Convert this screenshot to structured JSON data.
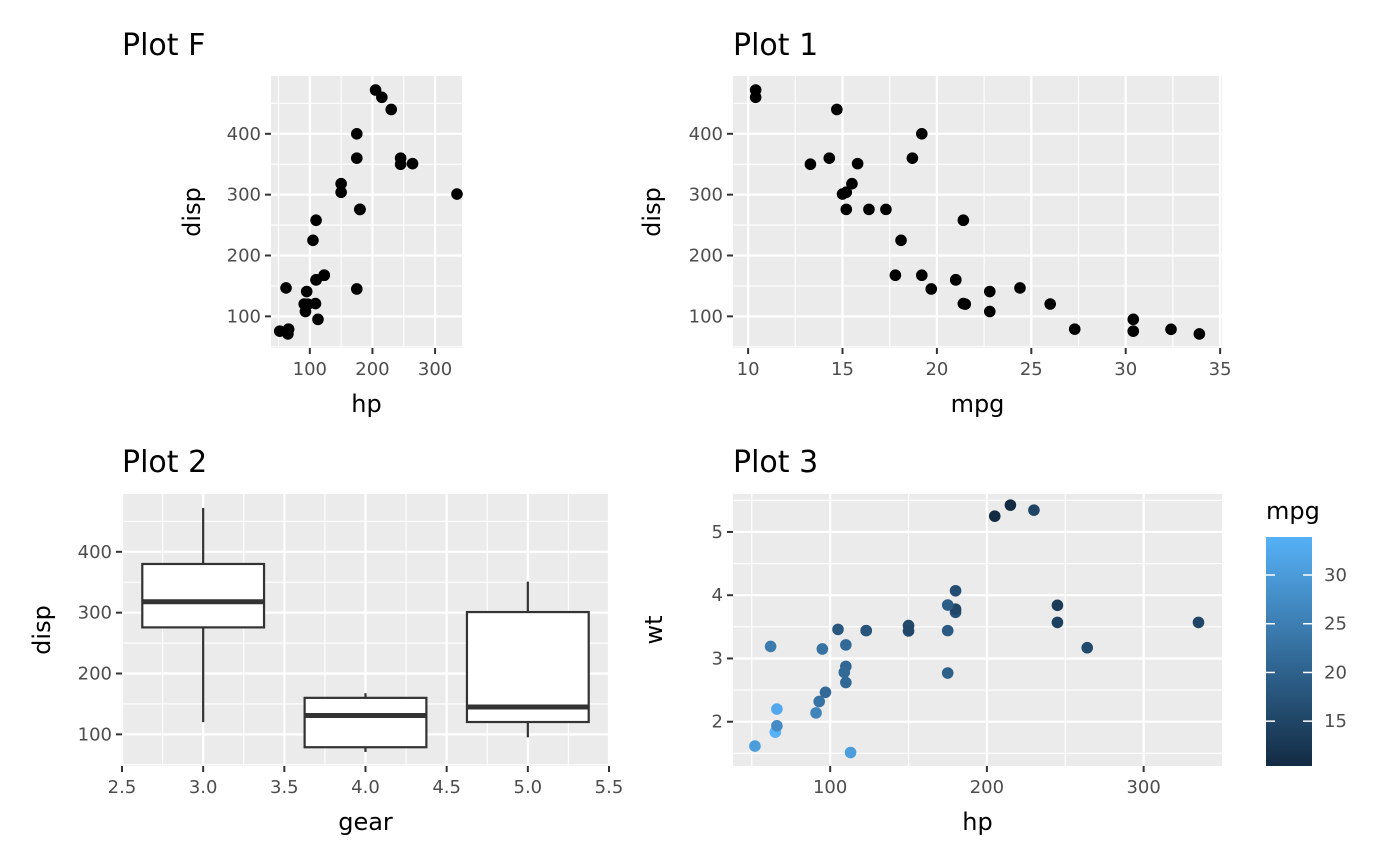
{
  "chart_data": [
    {
      "id": "plotF",
      "type": "scatter",
      "title": "Plot F",
      "xlabel": "hp",
      "ylabel": "disp",
      "xlim": [
        38,
        343
      ],
      "ylim": [
        48,
        495
      ],
      "xticks": [
        100,
        200,
        300
      ],
      "yticks": [
        100,
        200,
        300,
        400
      ],
      "point_color": "#000000",
      "points": [
        [
          110,
          160
        ],
        [
          110,
          160
        ],
        [
          93,
          108
        ],
        [
          110,
          258
        ],
        [
          175,
          360
        ],
        [
          105,
          225
        ],
        [
          245,
          360
        ],
        [
          62,
          146.7
        ],
        [
          95,
          140.8
        ],
        [
          123,
          167.6
        ],
        [
          123,
          167.6
        ],
        [
          180,
          275.8
        ],
        [
          180,
          275.8
        ],
        [
          180,
          275.8
        ],
        [
          205,
          472
        ],
        [
          215,
          460
        ],
        [
          230,
          440
        ],
        [
          66,
          78.7
        ],
        [
          52,
          75.7
        ],
        [
          65,
          71.1
        ],
        [
          97,
          120.1
        ],
        [
          150,
          318
        ],
        [
          150,
          304
        ],
        [
          245,
          350
        ],
        [
          175,
          400
        ],
        [
          66,
          79
        ],
        [
          91,
          120.3
        ],
        [
          113,
          95.1
        ],
        [
          264,
          351
        ],
        [
          175,
          145
        ],
        [
          335,
          301
        ],
        [
          109,
          121
        ]
      ]
    },
    {
      "id": "plot1",
      "type": "scatter",
      "title": "Plot 1",
      "xlabel": "mpg",
      "ylabel": "disp",
      "xlim": [
        9.2,
        35.1
      ],
      "ylim": [
        48,
        495
      ],
      "xticks": [
        10,
        15,
        20,
        25,
        30,
        35
      ],
      "yticks": [
        100,
        200,
        300,
        400
      ],
      "point_color": "#000000",
      "points": [
        [
          21,
          160
        ],
        [
          21,
          160
        ],
        [
          22.8,
          108
        ],
        [
          21.4,
          258
        ],
        [
          18.7,
          360
        ],
        [
          18.1,
          225
        ],
        [
          14.3,
          360
        ],
        [
          24.4,
          146.7
        ],
        [
          22.8,
          140.8
        ],
        [
          19.2,
          167.6
        ],
        [
          17.8,
          167.6
        ],
        [
          16.4,
          275.8
        ],
        [
          17.3,
          275.8
        ],
        [
          15.2,
          275.8
        ],
        [
          10.4,
          472
        ],
        [
          10.4,
          460
        ],
        [
          14.7,
          440
        ],
        [
          32.4,
          78.7
        ],
        [
          30.4,
          75.7
        ],
        [
          33.9,
          71.1
        ],
        [
          21.5,
          120.1
        ],
        [
          15.5,
          318
        ],
        [
          15.2,
          304
        ],
        [
          13.3,
          350
        ],
        [
          19.2,
          400
        ],
        [
          27.3,
          79
        ],
        [
          26,
          120.3
        ],
        [
          30.4,
          95.1
        ],
        [
          15.8,
          351
        ],
        [
          19.7,
          145
        ],
        [
          15,
          301
        ],
        [
          21.4,
          121
        ]
      ]
    },
    {
      "id": "plot2",
      "type": "box",
      "title": "Plot 2",
      "xlabel": "gear",
      "ylabel": "disp",
      "xlim": [
        2.5,
        5.5
      ],
      "ylim": [
        48,
        495
      ],
      "xticks": [
        "2.5",
        "3.0",
        "3.5",
        "4.0",
        "4.5",
        "5.0",
        "5.5"
      ],
      "yticks": [
        100,
        200,
        300,
        400
      ],
      "boxes": [
        {
          "gear": 3,
          "min": 120.1,
          "q1": 275.8,
          "median": 318,
          "q3": 380,
          "max": 472
        },
        {
          "gear": 4,
          "min": 71.1,
          "q1": 78.85,
          "median": 130.9,
          "q3": 160,
          "max": 167.6
        },
        {
          "gear": 5,
          "min": 95.1,
          "q1": 120.3,
          "median": 145,
          "q3": 301,
          "max": 351
        }
      ]
    },
    {
      "id": "plot3",
      "type": "scatter",
      "title": "Plot 3",
      "xlabel": "hp",
      "ylabel": "wt",
      "xlim": [
        38,
        350
      ],
      "ylim": [
        1.3,
        5.6
      ],
      "xticks": [
        100,
        200,
        300
      ],
      "yticks": [
        2,
        3,
        4,
        5
      ],
      "color_var": "mpg",
      "color_range": [
        10.4,
        33.9
      ],
      "color_low": "#132B43",
      "color_high": "#56B1F7",
      "legend_title": "mpg",
      "legend_ticks": [
        15,
        20,
        25,
        30
      ],
      "points": [
        [
          110,
          2.62,
          21
        ],
        [
          110,
          2.875,
          21
        ],
        [
          93,
          2.32,
          22.8
        ],
        [
          110,
          3.215,
          21.4
        ],
        [
          175,
          3.44,
          18.7
        ],
        [
          105,
          3.46,
          18.1
        ],
        [
          245,
          3.57,
          14.3
        ],
        [
          62,
          3.19,
          24.4
        ],
        [
          95,
          3.15,
          22.8
        ],
        [
          123,
          3.44,
          19.2
        ],
        [
          123,
          3.44,
          17.8
        ],
        [
          180,
          4.07,
          16.4
        ],
        [
          180,
          3.73,
          17.3
        ],
        [
          180,
          3.78,
          15.2
        ],
        [
          205,
          5.25,
          10.4
        ],
        [
          215,
          5.424,
          10.4
        ],
        [
          230,
          5.345,
          14.7
        ],
        [
          66,
          2.2,
          32.4
        ],
        [
          52,
          1.615,
          30.4
        ],
        [
          65,
          1.835,
          33.9
        ],
        [
          97,
          2.465,
          21.5
        ],
        [
          150,
          3.52,
          15.5
        ],
        [
          150,
          3.435,
          15.2
        ],
        [
          245,
          3.84,
          13.3
        ],
        [
          175,
          3.845,
          19.2
        ],
        [
          66,
          1.935,
          27.3
        ],
        [
          91,
          2.14,
          26
        ],
        [
          113,
          1.513,
          30.4
        ],
        [
          264,
          3.17,
          15.8
        ],
        [
          175,
          2.77,
          19.7
        ],
        [
          335,
          3.57,
          15
        ],
        [
          109,
          2.78,
          21.4
        ]
      ]
    }
  ]
}
